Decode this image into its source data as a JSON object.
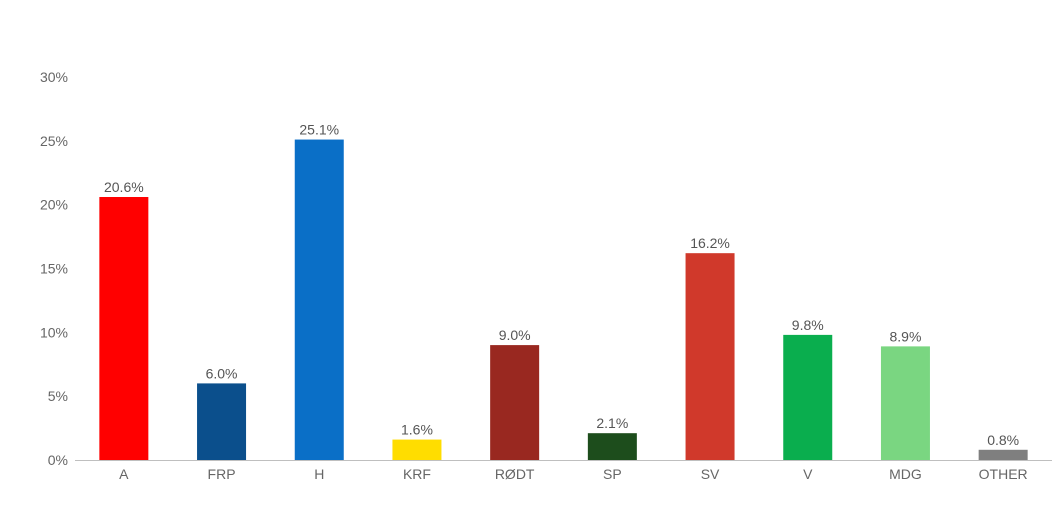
{
  "chart_data": {
    "type": "bar",
    "title": "",
    "xlabel": "",
    "ylabel": "",
    "ylim": [
      0,
      30
    ],
    "y_ticks": [
      0,
      5,
      10,
      15,
      20,
      25,
      30
    ],
    "y_tick_labels": [
      "0%",
      "5%",
      "10%",
      "15%",
      "20%",
      "25%",
      "30%"
    ],
    "grid": false,
    "legend": "none",
    "categories": [
      "A",
      "FRP",
      "H",
      "KRF",
      "RØDT",
      "SP",
      "SV",
      "V",
      "MDG",
      "OTHER"
    ],
    "values": [
      20.6,
      6.0,
      25.1,
      1.6,
      9.0,
      2.1,
      16.2,
      9.8,
      8.9,
      0.8
    ],
    "data_labels": [
      "20.6%",
      "6.0%",
      "25.1%",
      "1.6%",
      "9.0%",
      "2.1%",
      "16.2%",
      "9.8%",
      "8.9%",
      "0.8%"
    ],
    "colors": [
      "#ff0000",
      "#0b4f8c",
      "#0a6fc7",
      "#ffdd00",
      "#992820",
      "#1d4d1c",
      "#d0392b",
      "#0aae4e",
      "#7ad681",
      "#7f7f7f"
    ],
    "axis_color": "#bfbfbf"
  }
}
